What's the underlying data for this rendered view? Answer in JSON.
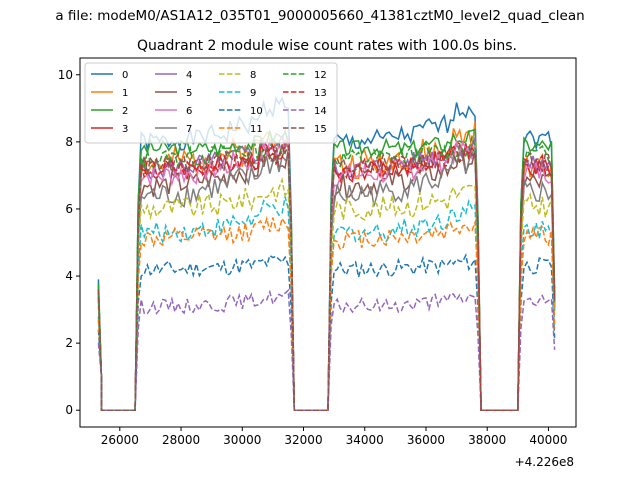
{
  "chart_data": {
    "type": "line",
    "suptitle": "a file: modeM0/AS1A12_035T01_9000005660_41381cztM0_level2_quad_clean",
    "title": "Quadrant 2 module wise count rates with 100.0s bins.",
    "xlabel": "",
    "ylabel": "",
    "x_offset_label": "+4.226e8",
    "xlim": [
      24700,
      40900
    ],
    "ylim": [
      -0.5,
      10.5
    ],
    "xticks": [
      26000,
      28000,
      30000,
      32000,
      34000,
      36000,
      38000,
      40000
    ],
    "yticks": [
      0,
      2,
      4,
      6,
      8,
      10
    ],
    "grid": false,
    "legend": {
      "position": "top-left",
      "columns": 4
    },
    "data_gaps_x": [
      [
        25400,
        26500
      ],
      [
        31700,
        32800
      ],
      [
        37800,
        39000
      ]
    ],
    "segments_x": [
      [
        26600,
        31600
      ],
      [
        32900,
        37700
      ],
      [
        39100,
        40200
      ]
    ],
    "series": [
      {
        "name": "0",
        "color": "#1f77b4",
        "dash": "solid",
        "level": 8.0,
        "start": 3.9,
        "amp": 0.3,
        "seed": 1,
        "rise": [
          0,
          0.2,
          0.4,
          0.7,
          1.2
        ]
      },
      {
        "name": "1",
        "color": "#ff7f0e",
        "dash": "solid",
        "level": 7.3,
        "start": 3.6,
        "amp": 0.45,
        "seed": 2,
        "rise": [
          0,
          0.3,
          0.6,
          0.6,
          1.0
        ]
      },
      {
        "name": "2",
        "color": "#2ca02c",
        "dash": "solid",
        "level": 7.8,
        "start": 3.8,
        "amp": 0.25,
        "seed": 3,
        "rise": [
          0,
          0.1,
          0.0,
          0.2,
          0.4
        ]
      },
      {
        "name": "3",
        "color": "#d62728",
        "dash": "solid",
        "level": 7.1,
        "start": 3.5,
        "amp": 0.3,
        "seed": 4,
        "rise": [
          0,
          0.2,
          0.3,
          0.5,
          0.8
        ]
      },
      {
        "name": "4",
        "color": "#9467bd",
        "dash": "solid",
        "level": 7.2,
        "start": 3.5,
        "amp": 0.3,
        "seed": 5,
        "rise": [
          0,
          0.2,
          0.4,
          0.6,
          0.8
        ]
      },
      {
        "name": "5",
        "color": "#8c564b",
        "dash": "solid",
        "level": 6.7,
        "start": 3.4,
        "amp": 0.35,
        "seed": 6,
        "rise": [
          0,
          0.2,
          0.4,
          0.6,
          0.9
        ]
      },
      {
        "name": "6",
        "color": "#e377c2",
        "dash": "solid",
        "level": 7.0,
        "start": 3.5,
        "amp": 0.35,
        "seed": 7,
        "rise": [
          0,
          0.2,
          0.4,
          0.6,
          0.9
        ]
      },
      {
        "name": "7",
        "color": "#7f7f7f",
        "dash": "solid",
        "level": 6.4,
        "start": 3.3,
        "amp": 0.4,
        "seed": 8,
        "rise": [
          0,
          0.2,
          0.5,
          0.7,
          1.1
        ]
      },
      {
        "name": "8",
        "color": "#bcbd22",
        "dash": "dashed",
        "level": 6.0,
        "start": 3.1,
        "amp": 0.35,
        "seed": 9,
        "rise": [
          0,
          0.1,
          0.2,
          0.4,
          0.6
        ]
      },
      {
        "name": "9",
        "color": "#17becf",
        "dash": "dashed",
        "level": 5.3,
        "start": 2.8,
        "amp": 0.3,
        "seed": 10,
        "rise": [
          0,
          0.1,
          0.3,
          0.5,
          0.8
        ]
      },
      {
        "name": "10",
        "color": "#1f77b4",
        "dash": "dashed",
        "level": 4.2,
        "start": 2.4,
        "amp": 0.25,
        "seed": 11,
        "rise": [
          0,
          0.05,
          0.1,
          0.15,
          0.25
        ]
      },
      {
        "name": "11",
        "color": "#ff7f0e",
        "dash": "dashed",
        "level": 5.1,
        "start": 2.7,
        "amp": 0.3,
        "seed": 12,
        "rise": [
          0,
          0.1,
          0.2,
          0.3,
          0.5
        ]
      },
      {
        "name": "12",
        "color": "#2ca02c",
        "dash": "dashed",
        "level": 7.5,
        "start": 3.7,
        "amp": 0.3,
        "seed": 13,
        "rise": [
          0,
          0.1,
          0.2,
          0.3,
          0.4
        ]
      },
      {
        "name": "13",
        "color": "#d62728",
        "dash": "dashed",
        "level": 7.2,
        "start": 3.6,
        "amp": 0.3,
        "seed": 14,
        "rise": [
          0,
          0.1,
          0.2,
          0.3,
          0.5
        ]
      },
      {
        "name": "14",
        "color": "#9467bd",
        "dash": "dashed",
        "level": 3.1,
        "start": 2.0,
        "amp": 0.22,
        "seed": 15,
        "rise": [
          0,
          0.05,
          0.1,
          0.2,
          0.3
        ]
      },
      {
        "name": "15",
        "color": "#8c564b",
        "dash": "dashed",
        "level": 7.3,
        "start": 3.6,
        "amp": 0.3,
        "seed": 16,
        "rise": [
          0,
          0.1,
          0.2,
          0.3,
          0.4
        ]
      }
    ]
  }
}
